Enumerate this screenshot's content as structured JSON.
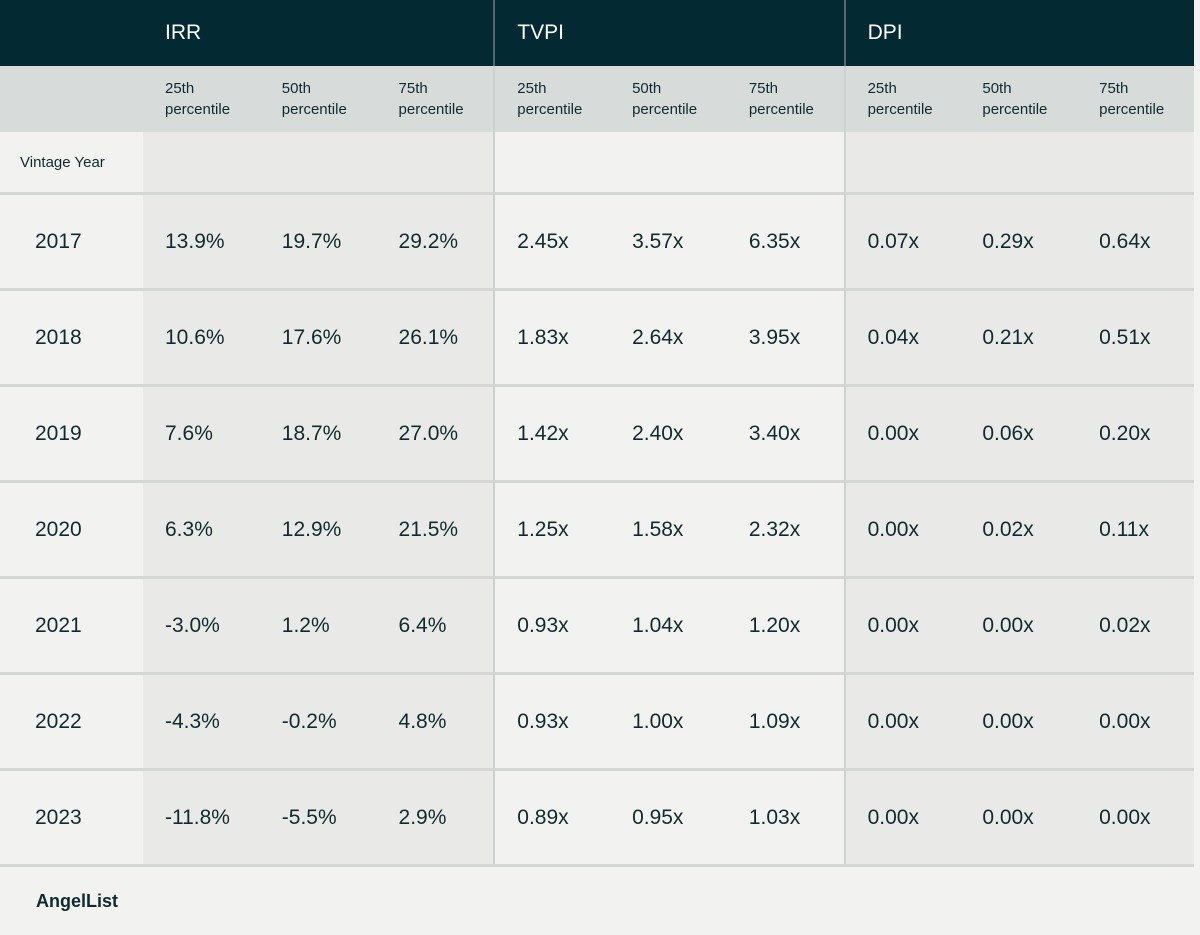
{
  "chart_data": {
    "type": "table",
    "groups": [
      "IRR",
      "TVPI",
      "DPI"
    ],
    "subheaders": [
      "25th\npercentile",
      "50th\npercentile",
      "75th\npercentile"
    ],
    "row_header": "Vintage Year",
    "rows": [
      {
        "year": "2017",
        "values": [
          "13.9%",
          "19.7%",
          "29.2%",
          "2.45x",
          "3.57x",
          "6.35x",
          "0.07x",
          "0.29x",
          "0.64x"
        ]
      },
      {
        "year": "2018",
        "values": [
          "10.6%",
          "17.6%",
          "26.1%",
          "1.83x",
          "2.64x",
          "3.95x",
          "0.04x",
          "0.21x",
          "0.51x"
        ]
      },
      {
        "year": "2019",
        "values": [
          "7.6%",
          "18.7%",
          "27.0%",
          "1.42x",
          "2.40x",
          "3.40x",
          "0.00x",
          "0.06x",
          "0.20x"
        ]
      },
      {
        "year": "2020",
        "values": [
          "6.3%",
          "12.9%",
          "21.5%",
          "1.25x",
          "1.58x",
          "2.32x",
          "0.00x",
          "0.02x",
          "0.11x"
        ]
      },
      {
        "year": "2021",
        "values": [
          "-3.0%",
          "1.2%",
          "6.4%",
          "0.93x",
          "1.04x",
          "1.20x",
          "0.00x",
          "0.00x",
          "0.02x"
        ]
      },
      {
        "year": "2022",
        "values": [
          "-4.3%",
          "-0.2%",
          "4.8%",
          "0.93x",
          "1.00x",
          "1.09x",
          "0.00x",
          "0.00x",
          "0.00x"
        ]
      },
      {
        "year": "2023",
        "values": [
          "-11.8%",
          "-5.5%",
          "2.9%",
          "0.89x",
          "0.95x",
          "1.03x",
          "0.00x",
          "0.00x",
          "0.00x"
        ]
      }
    ],
    "source": "AngelList"
  },
  "colors": {
    "header_bg": "#032a32",
    "subheader_bg": "#d7dbd9",
    "body_bg": "#f2f3f0",
    "shaded_bg": "#e9eae8",
    "text": "#0f2b30"
  }
}
